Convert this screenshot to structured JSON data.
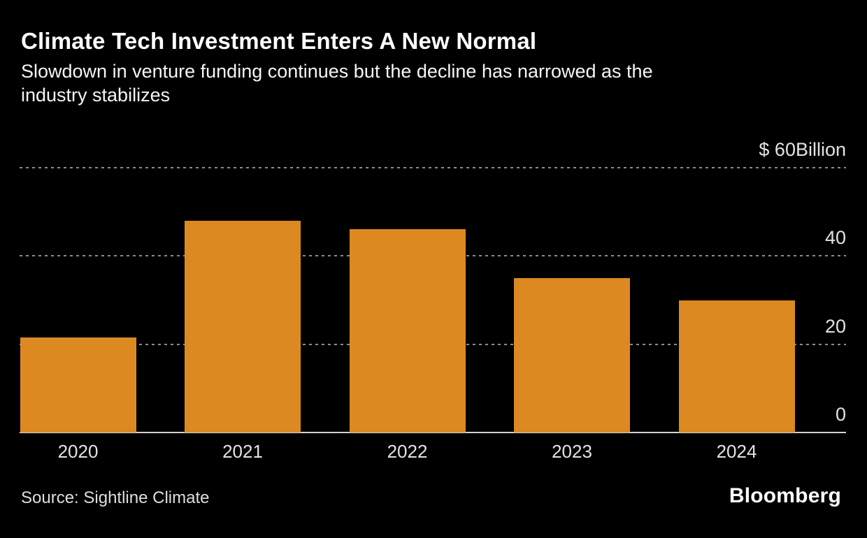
{
  "header": {
    "title": "Climate Tech Investment Enters A New Normal",
    "subtitle": "Slowdown in venture funding continues but the decline has narrowed as the industry stabilizes",
    "subtitle_lines": [
      "Slowdown in venture funding continues but the decline has narrowed as the",
      "industry stabilizes"
    ]
  },
  "footer": {
    "source_label": "Source: Sightline Climate",
    "brand": "Bloomberg"
  },
  "colors": {
    "background": "#000000",
    "bar": "#dd8921",
    "gridline": "#8c8c8c",
    "axis": "#d2d2d2",
    "text": "#ffffff",
    "tick_text": "#e3e3e3"
  },
  "chart_data": {
    "type": "bar",
    "title": "Climate Tech Investment Enters A New Normal",
    "subtitle": "Slowdown in venture funding continues but the decline has narrowed as the industry stabilizes",
    "categories": [
      "2020",
      "2021",
      "2022",
      "2023",
      "2024"
    ],
    "values": [
      21.5,
      48,
      46,
      35,
      30
    ],
    "unit": "$ Billion",
    "xlabel": "",
    "ylabel": "$ Billion",
    "ylim": [
      0,
      60
    ],
    "yticks": [
      {
        "value": 60,
        "label": "$ 60Billion"
      },
      {
        "value": 40,
        "label": "40"
      },
      {
        "value": 20,
        "label": "20"
      },
      {
        "value": 0,
        "label": "0"
      }
    ],
    "grid": "horizontal dashed, labels right-aligned above lines",
    "legend": "none",
    "bar_color": "#dd8921",
    "source": "Sightline Climate"
  }
}
